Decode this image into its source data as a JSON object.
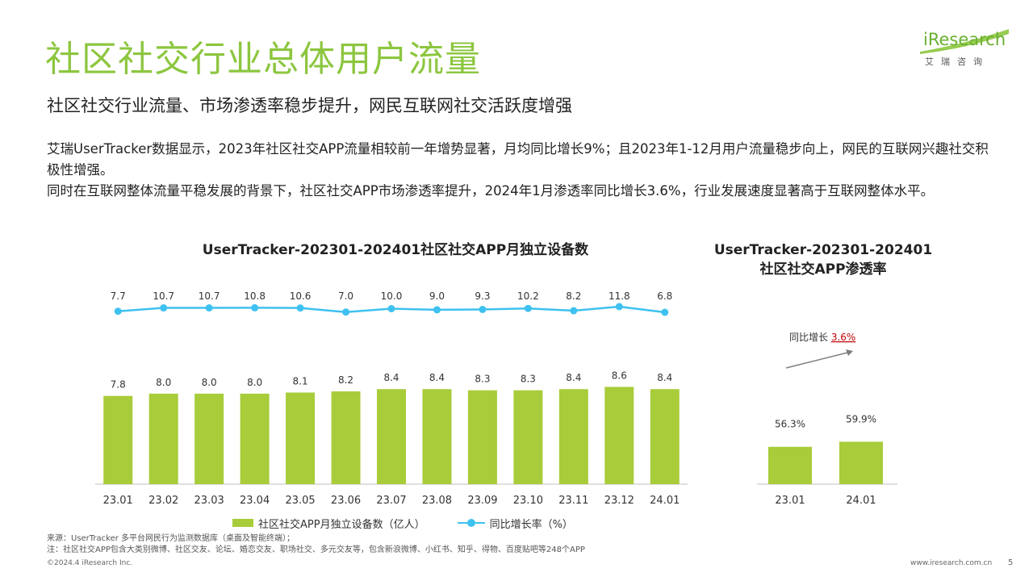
{
  "header": {
    "title": "社区社交行业总体用户流量",
    "subtitle": "社区社交行业流量、市场渗透率稳步提升，网民互联网社交活跃度增强",
    "logo_word": "iResearch",
    "logo_cn": "艾瑞咨询"
  },
  "body": {
    "para1": "艾瑞UserTracker数据显示，2023年社区社交APP流量相较前一年增势显著，月均同比增长9%；且2023年1-12月用户流量稳步向上，网民的互联网兴趣社交积极性增强。",
    "para2": "同时在互联网整体流量平稳发展的背景下，社区社交APP市场渗透率提升，2024年1月渗透率同比增长3.6%，行业发展速度显著高于互联网整体水平。"
  },
  "colors": {
    "brand_green": "#8cc63f",
    "bar": "#a8cc3a",
    "line": "#3ec1f0",
    "highlight": "#c00000"
  },
  "chart_data": [
    {
      "type": "bar",
      "title": "UserTracker-202301-202401社区社交APP月独立设备数",
      "categories": [
        "23.01",
        "23.02",
        "23.03",
        "23.04",
        "23.05",
        "23.06",
        "23.07",
        "23.08",
        "23.09",
        "23.10",
        "23.11",
        "23.12",
        "24.01"
      ],
      "series": [
        {
          "name": "社区社交APP月独立设备数（亿人）",
          "type": "bar",
          "values": [
            7.8,
            8.0,
            8.0,
            8.0,
            8.1,
            8.2,
            8.4,
            8.4,
            8.3,
            8.3,
            8.4,
            8.6,
            8.4
          ]
        },
        {
          "name": "同比增长率（%）",
          "type": "line",
          "values": [
            7.7,
            10.7,
            10.7,
            10.8,
            10.6,
            7.0,
            10.0,
            9.0,
            9.3,
            10.2,
            8.2,
            11.8,
            6.8
          ]
        }
      ],
      "legend_position": "bottom"
    },
    {
      "type": "bar",
      "title": "UserTracker-202301-202401\n社区社交APP渗透率",
      "categories": [
        "23.01",
        "24.01"
      ],
      "values": [
        56.3,
        59.9
      ],
      "value_labels": [
        "56.3%",
        "59.9%"
      ],
      "annotation_label": "同比增长",
      "annotation_value": "3.6%"
    }
  ],
  "footer": {
    "source": "来源：UserTracker 多平台网民行为监测数据库（桌面及智能终端）；",
    "note": "注：社区社交APP包含大类别微博、社区交友、论坛、婚恋交友、职场社交、多元交友等，包含新浪微博、小红书、知乎、得物、百度贴吧等248个APP",
    "copyright": "©2024.4 iResearch Inc.",
    "url": "www.iresearch.com.cn",
    "page": "5"
  }
}
